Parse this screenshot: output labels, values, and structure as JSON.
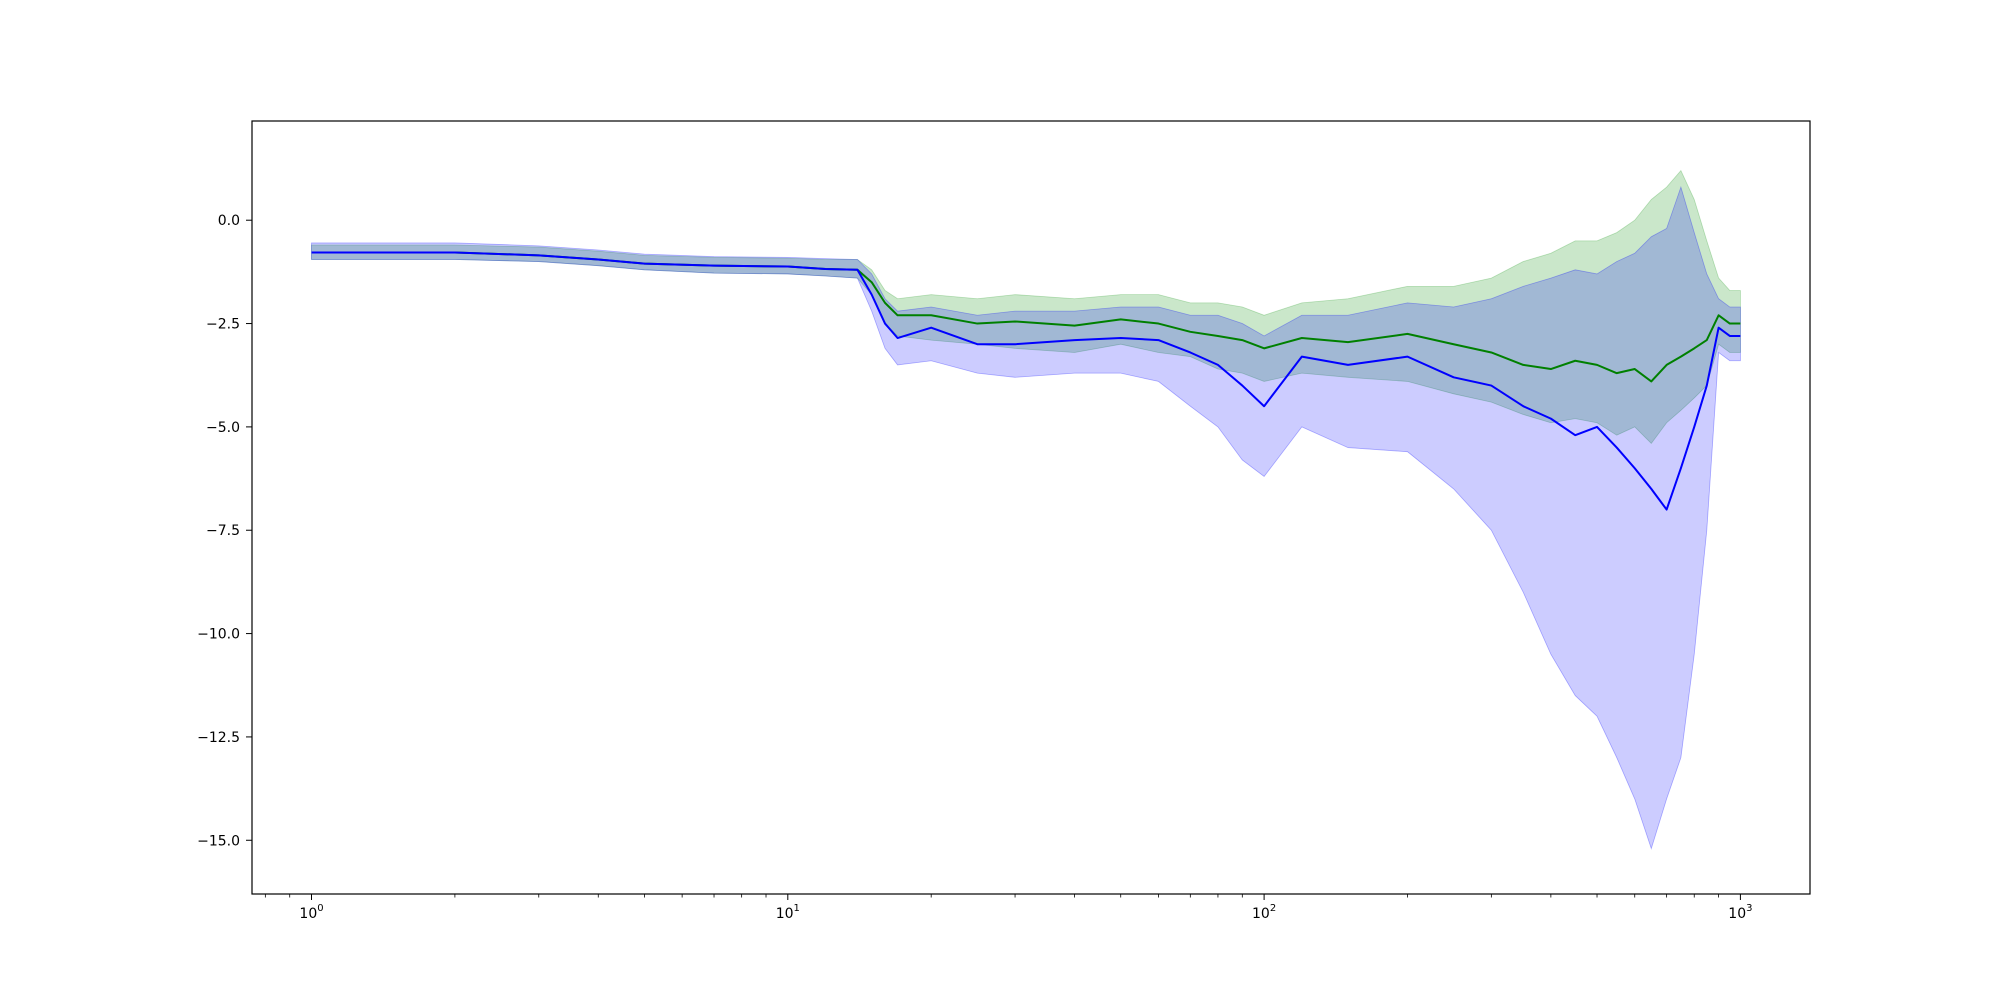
{
  "chart_data": {
    "type": "line",
    "title": "",
    "xlabel": "",
    "ylabel": "",
    "xscale": "log",
    "xlim": [
      0.75,
      1400
    ],
    "ylim": [
      -16.3,
      2.4
    ],
    "grid": false,
    "legend": "none",
    "x_ticks": [
      {
        "value": 1,
        "base": "10",
        "exp": "0"
      },
      {
        "value": 10,
        "base": "10",
        "exp": "1"
      },
      {
        "value": 100,
        "base": "10",
        "exp": "2"
      },
      {
        "value": 1000,
        "base": "10",
        "exp": "3"
      }
    ],
    "y_ticks": [
      {
        "value": 0.0,
        "label": "0.0"
      },
      {
        "value": -2.5,
        "label": "−2.5"
      },
      {
        "value": -5.0,
        "label": "−5.0"
      },
      {
        "value": -7.5,
        "label": "−7.5"
      },
      {
        "value": -10.0,
        "label": "−10.0"
      },
      {
        "value": -12.5,
        "label": "−12.5"
      },
      {
        "value": -15.0,
        "label": "−15.0"
      }
    ],
    "series": [
      {
        "color": "#008000",
        "band_color": "#2ca02c",
        "x": [
          1,
          2,
          3,
          4,
          5,
          7,
          10,
          12,
          14,
          15,
          16,
          17,
          20,
          25,
          30,
          40,
          50,
          60,
          70,
          80,
          90,
          100,
          120,
          150,
          200,
          250,
          300,
          350,
          400,
          450,
          500,
          550,
          600,
          650,
          700,
          750,
          800,
          850,
          900,
          950,
          1000
        ],
        "y": [
          -0.78,
          -0.78,
          -0.85,
          -0.95,
          -1.05,
          -1.1,
          -1.12,
          -1.18,
          -1.2,
          -1.5,
          -2.0,
          -2.3,
          -2.3,
          -2.5,
          -2.45,
          -2.55,
          -2.4,
          -2.5,
          -2.7,
          -2.8,
          -2.9,
          -3.1,
          -2.85,
          -2.95,
          -2.75,
          -3.0,
          -3.2,
          -3.5,
          -3.6,
          -3.4,
          -3.5,
          -3.7,
          -3.6,
          -3.9,
          -3.5,
          -3.3,
          -3.1,
          -2.9,
          -2.3,
          -2.5,
          -2.5
        ],
        "lower": [
          -0.95,
          -0.95,
          -1.0,
          -1.1,
          -1.2,
          -1.28,
          -1.3,
          -1.35,
          -1.4,
          -1.8,
          -2.5,
          -2.8,
          -2.9,
          -3.0,
          -3.1,
          -3.2,
          -3.0,
          -3.2,
          -3.3,
          -3.6,
          -3.7,
          -3.9,
          -3.7,
          -3.8,
          -3.9,
          -4.2,
          -4.4,
          -4.7,
          -4.9,
          -4.8,
          -4.9,
          -5.2,
          -5.0,
          -5.4,
          -4.9,
          -4.6,
          -4.3,
          -4.0,
          -3.0,
          -3.2,
          -3.2
        ],
        "upper": [
          -0.6,
          -0.6,
          -0.65,
          -0.75,
          -0.85,
          -0.9,
          -0.92,
          -0.95,
          -0.95,
          -1.2,
          -1.7,
          -1.9,
          -1.8,
          -1.9,
          -1.8,
          -1.9,
          -1.8,
          -1.8,
          -2.0,
          -2.0,
          -2.1,
          -2.3,
          -2.0,
          -1.9,
          -1.6,
          -1.6,
          -1.4,
          -1.0,
          -0.8,
          -0.5,
          -0.5,
          -0.3,
          0.0,
          0.5,
          0.8,
          1.2,
          0.5,
          -0.5,
          -1.4,
          -1.7,
          -1.7
        ]
      },
      {
        "color": "#0000ff",
        "band_color": "#0000ff",
        "x": [
          1,
          2,
          3,
          4,
          5,
          7,
          10,
          12,
          14,
          15,
          16,
          17,
          20,
          25,
          30,
          40,
          50,
          60,
          70,
          80,
          90,
          100,
          120,
          150,
          200,
          250,
          300,
          350,
          400,
          450,
          500,
          550,
          600,
          650,
          700,
          750,
          800,
          850,
          900,
          950,
          1000
        ],
        "y": [
          -0.78,
          -0.78,
          -0.85,
          -0.95,
          -1.05,
          -1.1,
          -1.12,
          -1.18,
          -1.2,
          -1.8,
          -2.5,
          -2.85,
          -2.6,
          -3.0,
          -3.0,
          -2.9,
          -2.85,
          -2.9,
          -3.2,
          -3.5,
          -4.0,
          -4.5,
          -3.3,
          -3.5,
          -3.3,
          -3.8,
          -4.0,
          -4.5,
          -4.8,
          -5.2,
          -5.0,
          -5.5,
          -6.0,
          -6.5,
          -7.0,
          -6.0,
          -5.0,
          -4.0,
          -2.6,
          -2.8,
          -2.8
        ],
        "lower": [
          -0.95,
          -0.95,
          -1.0,
          -1.1,
          -1.2,
          -1.28,
          -1.3,
          -1.35,
          -1.4,
          -2.2,
          -3.1,
          -3.5,
          -3.4,
          -3.7,
          -3.8,
          -3.7,
          -3.7,
          -3.9,
          -4.5,
          -5.0,
          -5.8,
          -6.2,
          -5.0,
          -5.5,
          -5.6,
          -6.5,
          -7.5,
          -9.0,
          -10.5,
          -11.5,
          -12.0,
          -13.0,
          -14.0,
          -15.2,
          -14.0,
          -13.0,
          -10.5,
          -7.5,
          -3.2,
          -3.4,
          -3.4
        ],
        "upper": [
          -0.55,
          -0.55,
          -0.62,
          -0.72,
          -0.82,
          -0.88,
          -0.9,
          -0.93,
          -0.95,
          -1.3,
          -1.9,
          -2.2,
          -2.1,
          -2.3,
          -2.2,
          -2.2,
          -2.1,
          -2.1,
          -2.3,
          -2.3,
          -2.5,
          -2.8,
          -2.3,
          -2.3,
          -2.0,
          -2.1,
          -1.9,
          -1.6,
          -1.4,
          -1.2,
          -1.3,
          -1.0,
          -0.8,
          -0.4,
          -0.2,
          0.8,
          -0.3,
          -1.3,
          -1.9,
          -2.1,
          -2.1
        ]
      }
    ]
  }
}
